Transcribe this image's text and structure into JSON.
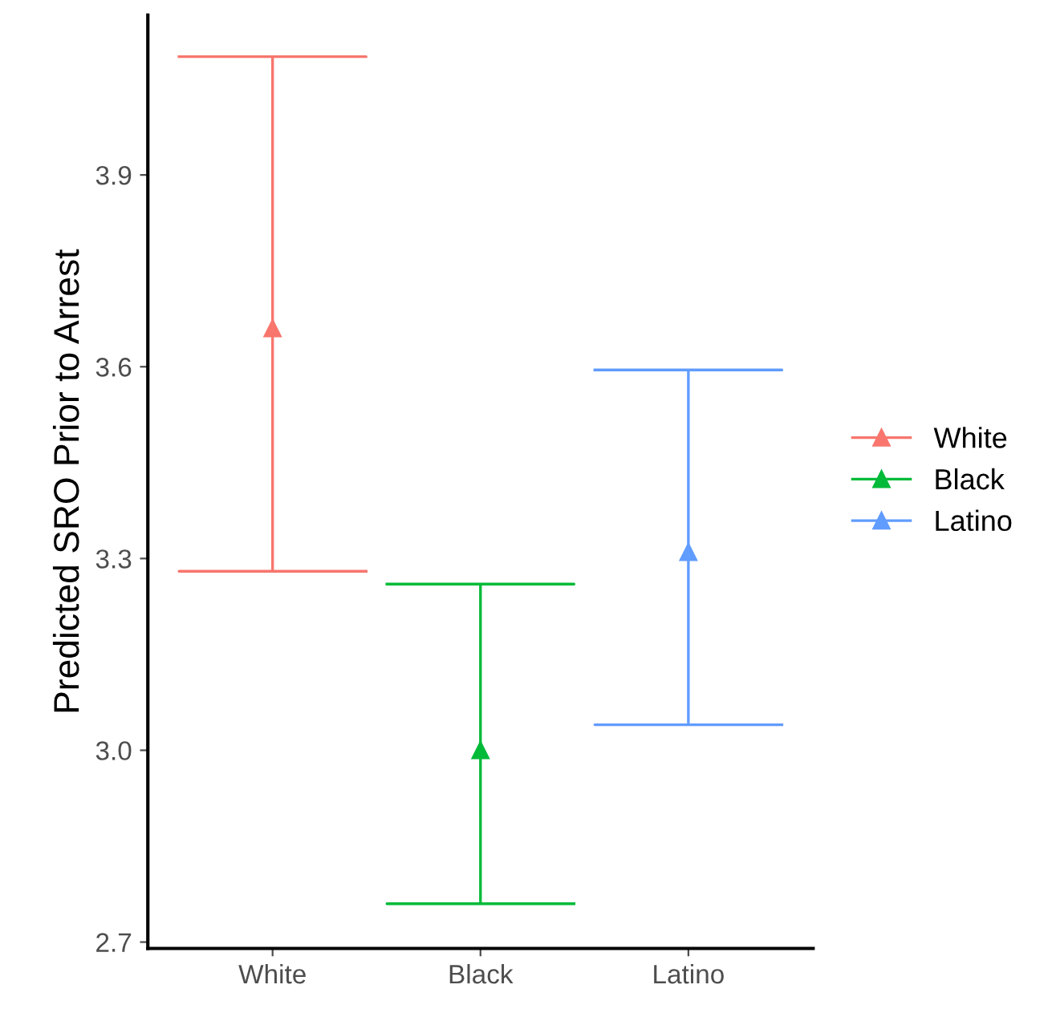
{
  "chart_data": {
    "type": "scatter",
    "ylabel": "Predicted SRO Prior to Arrest",
    "categories": [
      "White",
      "Black",
      "Latino"
    ],
    "series": [
      {
        "name": "White",
        "color": "#f8766d",
        "values": [
          3.66,
          null,
          null
        ],
        "errors": [
          [
            3.28,
            4.085
          ],
          null,
          null
        ]
      },
      {
        "name": "Black",
        "color": "#00ba38",
        "values": [
          null,
          3.0,
          null
        ],
        "errors": [
          null,
          [
            2.76,
            3.26
          ],
          null
        ]
      },
      {
        "name": "Latino",
        "color": "#619cff",
        "values": [
          null,
          null,
          3.31
        ],
        "errors": [
          null,
          null,
          [
            3.04,
            3.595
          ]
        ]
      }
    ],
    "ylim": [
      2.69,
      4.15
    ],
    "yticks": [
      {
        "value": 2.7,
        "label": "2.7"
      },
      {
        "value": 3.0,
        "label": "3.0"
      },
      {
        "value": 3.3,
        "label": "3.3"
      },
      {
        "value": 3.6,
        "label": "3.6"
      },
      {
        "value": 3.9,
        "label": "3.9"
      }
    ],
    "marker": "triangle",
    "legend": "right",
    "grid": false
  }
}
